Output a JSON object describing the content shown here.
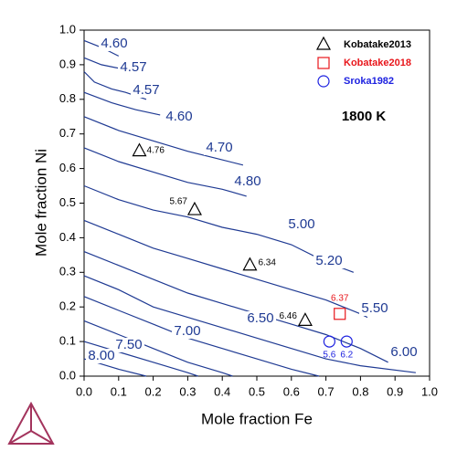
{
  "chart_data": {
    "type": "contour",
    "x_label": "Mole fraction Fe",
    "y_label": "Mole fraction Ni",
    "annotation": "1800 K",
    "xlim": [
      0,
      1
    ],
    "ylim": [
      0,
      1
    ],
    "xticks": [
      {
        "value": 0,
        "label": "0.0"
      },
      {
        "value": 0.1,
        "label": "0.1"
      },
      {
        "value": 0.2,
        "label": "0.2"
      },
      {
        "value": 0.3,
        "label": "0.3"
      },
      {
        "value": 0.4,
        "label": "0.4"
      },
      {
        "value": 0.5,
        "label": "0.5"
      },
      {
        "value": 0.6,
        "label": "0.6"
      },
      {
        "value": 0.7,
        "label": "0.7"
      },
      {
        "value": 0.8,
        "label": "0.8"
      },
      {
        "value": 0.9,
        "label": "0.9"
      },
      {
        "value": 1,
        "label": "1.0"
      }
    ],
    "yticks": [
      {
        "value": 0,
        "label": "0.0"
      },
      {
        "value": 0.1,
        "label": "0.1"
      },
      {
        "value": 0.2,
        "label": "0.2"
      },
      {
        "value": 0.3,
        "label": "0.3"
      },
      {
        "value": 0.4,
        "label": "0.4"
      },
      {
        "value": 0.5,
        "label": "0.5"
      },
      {
        "value": 0.6,
        "label": "0.6"
      },
      {
        "value": 0.7,
        "label": "0.7"
      },
      {
        "value": 0.8,
        "label": "0.8"
      },
      {
        "value": 0.9,
        "label": "0.9"
      },
      {
        "value": 1,
        "label": "1.0"
      }
    ],
    "contour_color": "#1f3a93",
    "contours": [
      {
        "name": "4.60",
        "x": [
          0,
          0.05,
          0.09,
          0.1
        ],
        "y": [
          0.97,
          0.95,
          0.93,
          0.925
        ]
      },
      {
        "name": "4.57",
        "x": [
          0,
          0.05,
          0.1
        ],
        "y": [
          0.92,
          0.9,
          0.89
        ]
      },
      {
        "name": "4.57",
        "x": [
          0,
          0.03,
          0.08,
          0.12,
          0.18
        ],
        "y": [
          0.88,
          0.85,
          0.83,
          0.82,
          0.8
        ]
      },
      {
        "name": "4.60",
        "x": [
          0,
          0.08,
          0.15,
          0.22
        ],
        "y": [
          0.82,
          0.79,
          0.77,
          0.755
        ]
      },
      {
        "name": "4.70",
        "x": [
          0,
          0.1,
          0.2,
          0.3,
          0.38,
          0.46
        ],
        "y": [
          0.75,
          0.71,
          0.68,
          0.65,
          0.63,
          0.61
        ]
      },
      {
        "name": "4.80",
        "x": [
          0,
          0.1,
          0.2,
          0.3,
          0.4,
          0.47
        ],
        "y": [
          0.66,
          0.62,
          0.59,
          0.56,
          0.54,
          0.52
        ]
      },
      {
        "name": "5.00",
        "x": [
          0,
          0.1,
          0.2,
          0.3,
          0.4,
          0.5,
          0.6,
          0.7,
          0.78
        ],
        "y": [
          0.55,
          0.51,
          0.48,
          0.46,
          0.43,
          0.41,
          0.38,
          0.33,
          0.3
        ]
      },
      {
        "name": "5.20",
        "x": [
          0,
          0.1,
          0.2,
          0.3,
          0.4,
          0.5,
          0.6,
          0.7,
          0.8,
          0.82
        ],
        "y": [
          0.45,
          0.41,
          0.37,
          0.34,
          0.31,
          0.28,
          0.25,
          0.22,
          0.18,
          0.17
        ]
      },
      {
        "name": "5.50",
        "x": [
          0,
          0.1,
          0.2,
          0.3,
          0.4,
          0.5,
          0.6,
          0.7,
          0.8,
          0.88
        ],
        "y": [
          0.36,
          0.32,
          0.28,
          0.24,
          0.21,
          0.18,
          0.15,
          0.12,
          0.08,
          0.04
        ]
      },
      {
        "name": "6.00",
        "x": [
          0,
          0.1,
          0.2,
          0.3,
          0.4,
          0.5,
          0.6,
          0.7,
          0.8,
          0.96
        ],
        "y": [
          0.29,
          0.25,
          0.2,
          0.17,
          0.14,
          0.11,
          0.08,
          0.05,
          0.03,
          0.01
        ]
      },
      {
        "name": "6.50",
        "x": [
          0,
          0.1,
          0.2,
          0.3,
          0.4,
          0.5,
          0.6,
          0.68
        ],
        "y": [
          0.23,
          0.19,
          0.15,
          0.11,
          0.08,
          0.05,
          0.02,
          0
        ]
      },
      {
        "name": "7.00",
        "x": [
          0,
          0.1,
          0.2,
          0.3,
          0.4,
          0.43
        ],
        "y": [
          0.16,
          0.12,
          0.08,
          0.04,
          0.01,
          0
        ]
      },
      {
        "name": "7.50",
        "x": [
          0,
          0.1,
          0.2,
          0.3,
          0.33
        ],
        "y": [
          0.1,
          0.07,
          0.04,
          0.01,
          0
        ]
      },
      {
        "name": "8.00",
        "x": [
          0,
          0.1,
          0.18
        ],
        "y": [
          0.05,
          0.02,
          0
        ]
      }
    ],
    "series": [
      {
        "name": "Kobatake2013",
        "color": "#000000",
        "marker": "triangle",
        "x": [
          0.16,
          0.32,
          0.48,
          0.64
        ],
        "y": [
          0.65,
          0.48,
          0.32,
          0.16
        ],
        "values": [
          4.76,
          5.67,
          6.34,
          6.46
        ]
      },
      {
        "name": "Kobatake2018",
        "color": "#e8161b",
        "marker": "square",
        "x": [
          0.74
        ],
        "y": [
          0.18
        ],
        "values": [
          6.37
        ]
      },
      {
        "name": "Sroka1982",
        "color": "#1e22e0",
        "marker": "circle",
        "x": [
          0.71,
          0.76
        ],
        "y": [
          0.1,
          0.1
        ],
        "values": [
          5.6,
          6.2
        ]
      }
    ]
  }
}
